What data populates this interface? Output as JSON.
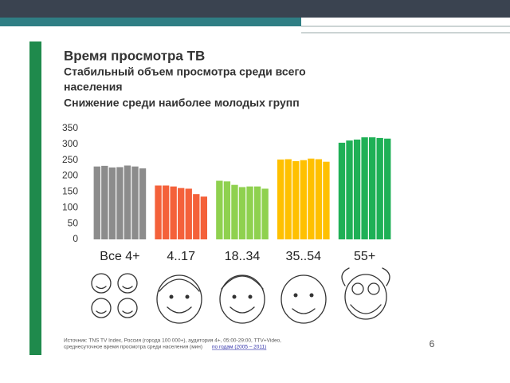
{
  "title": "Время просмотра ТВ",
  "subtitle": [
    "Стабильный объем просмотра среди всего",
    "населения",
    "Снижение среди наиболее молодых групп"
  ],
  "chart_data": {
    "type": "bar",
    "groups": [
      {
        "label": "Все 4+",
        "color": "#8c8c8c",
        "values": [
          230,
          232,
          227,
          228,
          233,
          230,
          224
        ]
      },
      {
        "label": "4..17",
        "color": "#f4613a",
        "values": [
          170,
          170,
          167,
          162,
          160,
          143,
          135
        ]
      },
      {
        "label": "18..34",
        "color": "#8fd14f",
        "values": [
          185,
          183,
          172,
          165,
          167,
          167,
          160
        ]
      },
      {
        "label": "35..54",
        "color": "#ffc000",
        "values": [
          252,
          253,
          247,
          250,
          255,
          253,
          245
        ]
      },
      {
        "label": "55+",
        "color": "#1fb056",
        "values": [
          305,
          312,
          315,
          322,
          322,
          320,
          318
        ]
      }
    ],
    "ylim": [
      0,
      350
    ],
    "yticks": [
      0,
      50,
      100,
      150,
      200,
      250,
      300,
      350
    ],
    "grid": false
  },
  "source": [
    "Источник: TNS TV Index, Россия (города 100 000+), аудитория 4+, 05:00-29:00, TTV+Video,",
    "среднесуточное время просмотра среди населения (мин)",
    "по годам (2005 – 2011)"
  ],
  "page_number": "6"
}
